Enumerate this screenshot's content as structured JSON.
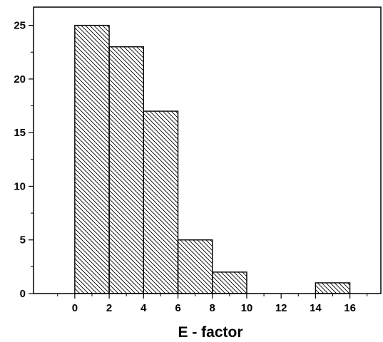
{
  "chart_data": {
    "type": "bar",
    "title": "",
    "xlabel": "E - factor",
    "ylabel": "",
    "bins": [
      {
        "x0": 0,
        "x1": 2,
        "value": 25
      },
      {
        "x0": 2,
        "x1": 4,
        "value": 23
      },
      {
        "x0": 4,
        "x1": 6,
        "value": 17
      },
      {
        "x0": 6,
        "x1": 8,
        "value": 5
      },
      {
        "x0": 8,
        "x1": 10,
        "value": 2
      },
      {
        "x0": 10,
        "x1": 12,
        "value": 0
      },
      {
        "x0": 12,
        "x1": 14,
        "value": 0
      },
      {
        "x0": 14,
        "x1": 16,
        "value": 1
      }
    ],
    "xticks": [
      "0",
      "2",
      "4",
      "6",
      "8",
      "10",
      "12",
      "14",
      "16"
    ],
    "yticks": [
      "0",
      "5",
      "10",
      "15",
      "20",
      "25"
    ],
    "xlim": [
      -2.4,
      17.8
    ],
    "ylim": [
      0,
      26.7
    ],
    "fill": "diagonal-hatch",
    "colors": {
      "bar_fill": "#ffffff",
      "bar_stroke": "#000000",
      "hatch": "#000000"
    },
    "grid": false,
    "legend": "none"
  }
}
